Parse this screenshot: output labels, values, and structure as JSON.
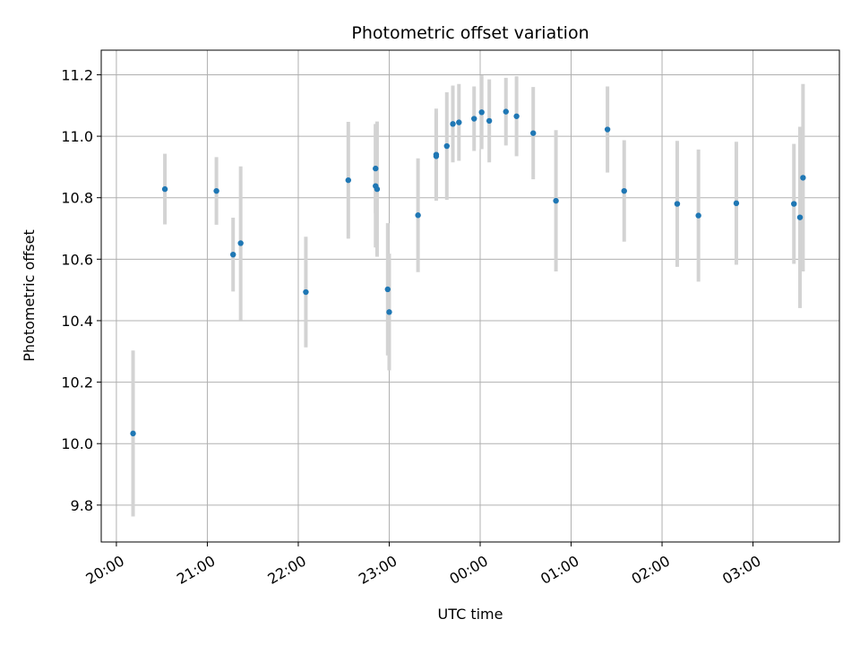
{
  "chart_data": {
    "type": "scatter",
    "title": "Photometric offset variation",
    "xlabel": "UTC time",
    "ylabel": "Photometric offset",
    "x_axis_kind": "time",
    "x_range": [
      "19:50",
      "03:57"
    ],
    "ylim": [
      9.68,
      11.28
    ],
    "grid": true,
    "x_tick_values": [
      "20:00",
      "21:00",
      "22:00",
      "23:00",
      "00:00",
      "01:00",
      "02:00",
      "03:00"
    ],
    "x_tick_labels": [
      "20:00",
      "21:00",
      "22:00",
      "23:00",
      "00:00",
      "01:00",
      "02:00",
      "03:00"
    ],
    "y_ticks": [
      9.8,
      10.0,
      10.2,
      10.4,
      10.6,
      10.8,
      11.0,
      11.2
    ],
    "y_tick_labels": [
      "9.8",
      "10.0",
      "10.2",
      "10.4",
      "10.6",
      "10.8",
      "11.0",
      "11.2"
    ],
    "colors": {
      "points": "#1f77b4",
      "errorbars": "#d3d3d3",
      "grid": "#b0b0b0"
    },
    "points": [
      {
        "x": "20:11",
        "y": 10.033,
        "err": 0.27
      },
      {
        "x": "20:32",
        "y": 10.828,
        "err": 0.115
      },
      {
        "x": "21:06",
        "y": 10.822,
        "err": 0.11
      },
      {
        "x": "21:17",
        "y": 10.615,
        "err": 0.12
      },
      {
        "x": "21:22",
        "y": 10.652,
        "err": 0.25
      },
      {
        "x": "22:05",
        "y": 10.493,
        "err": 0.18
      },
      {
        "x": "22:33",
        "y": 10.857,
        "err": 0.19
      },
      {
        "x": "22:51",
        "y": 10.895,
        "err": 0.145
      },
      {
        "x": "22:51",
        "y": 10.838,
        "err": 0.2
      },
      {
        "x": "22:52",
        "y": 10.828,
        "err": 0.22
      },
      {
        "x": "22:59",
        "y": 10.502,
        "err": 0.215
      },
      {
        "x": "23:00",
        "y": 10.428,
        "err": 0.19
      },
      {
        "x": "23:19",
        "y": 10.743,
        "err": 0.185
      },
      {
        "x": "23:31",
        "y": 10.94,
        "err": 0.15
      },
      {
        "x": "23:31",
        "y": 10.935,
        "err": 0.14
      },
      {
        "x": "23:38",
        "y": 10.968,
        "err": 0.175
      },
      {
        "x": "23:42",
        "y": 11.04,
        "err": 0.125
      },
      {
        "x": "23:46",
        "y": 11.045,
        "err": 0.125
      },
      {
        "x": "23:56",
        "y": 11.057,
        "err": 0.105
      },
      {
        "x": "00:01",
        "y": 11.078,
        "err": 0.12
      },
      {
        "x": "00:06",
        "y": 11.05,
        "err": 0.135
      },
      {
        "x": "00:17",
        "y": 11.08,
        "err": 0.11
      },
      {
        "x": "00:24",
        "y": 11.065,
        "err": 0.13
      },
      {
        "x": "00:35",
        "y": 11.01,
        "err": 0.15
      },
      {
        "x": "00:50",
        "y": 10.79,
        "err": 0.23
      },
      {
        "x": "01:24",
        "y": 11.022,
        "err": 0.14
      },
      {
        "x": "01:35",
        "y": 10.822,
        "err": 0.165
      },
      {
        "x": "02:10",
        "y": 10.78,
        "err": 0.205
      },
      {
        "x": "02:24",
        "y": 10.742,
        "err": 0.215
      },
      {
        "x": "02:49",
        "y": 10.782,
        "err": 0.2
      },
      {
        "x": "03:27",
        "y": 10.78,
        "err": 0.195
      },
      {
        "x": "03:31",
        "y": 10.736,
        "err": 0.295
      },
      {
        "x": "03:33",
        "y": 10.865,
        "err": 0.305
      }
    ]
  }
}
